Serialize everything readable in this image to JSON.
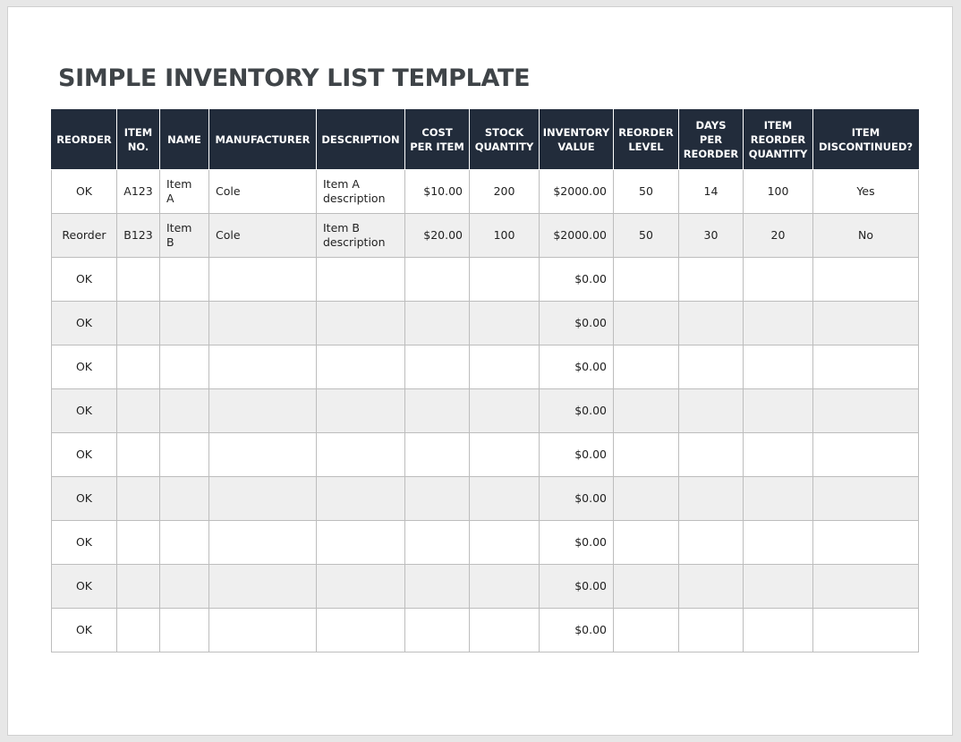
{
  "header": {
    "title": "SIMPLE INVENTORY LIST TEMPLATE"
  },
  "table": {
    "columns": [
      "REORDER",
      "ITEM\nNO.",
      "NAME",
      "MANUFACTURER",
      "DESCRIPTION",
      "COST\nPER ITEM",
      "STOCK\nQUANTITY",
      "INVENTORY\nVALUE",
      "REORDER\nLEVEL",
      "DAYS\nPER\nREORDER",
      "ITEM\nREORDER\nQUANTITY",
      "ITEM\nDISCONTINUED?"
    ],
    "rows": [
      [
        "OK",
        "A123",
        "Item\nA",
        "Cole",
        "Item A\ndescription",
        "$10.00",
        "200",
        "$2000.00",
        "50",
        "14",
        "100",
        "Yes"
      ],
      [
        "Reorder",
        "B123",
        "Item B",
        "Cole",
        "Item B\ndescription",
        "$20.00",
        "100",
        "$2000.00",
        "50",
        "30",
        "20",
        "No"
      ],
      [
        "OK",
        null,
        null,
        null,
        null,
        null,
        null,
        "$0.00",
        null,
        null,
        null,
        null
      ],
      [
        "OK",
        null,
        null,
        null,
        null,
        null,
        null,
        "$0.00",
        null,
        null,
        null,
        null
      ],
      [
        "OK",
        null,
        null,
        null,
        null,
        null,
        null,
        "$0.00",
        null,
        null,
        null,
        null
      ],
      [
        "OK",
        null,
        null,
        null,
        null,
        null,
        null,
        "$0.00",
        null,
        null,
        null,
        null
      ],
      [
        "OK",
        null,
        null,
        null,
        null,
        null,
        null,
        "$0.00",
        null,
        null,
        null,
        null
      ],
      [
        "OK",
        null,
        null,
        null,
        null,
        null,
        null,
        "$0.00",
        null,
        null,
        null,
        null
      ],
      [
        "OK",
        null,
        null,
        null,
        null,
        null,
        null,
        "$0.00",
        null,
        null,
        null,
        null
      ],
      [
        "OK",
        null,
        null,
        null,
        null,
        null,
        null,
        "$0.00",
        null,
        null,
        null,
        null
      ],
      [
        "OK",
        null,
        null,
        null,
        null,
        null,
        null,
        "$0.00",
        null,
        null,
        null,
        null
      ]
    ]
  }
}
